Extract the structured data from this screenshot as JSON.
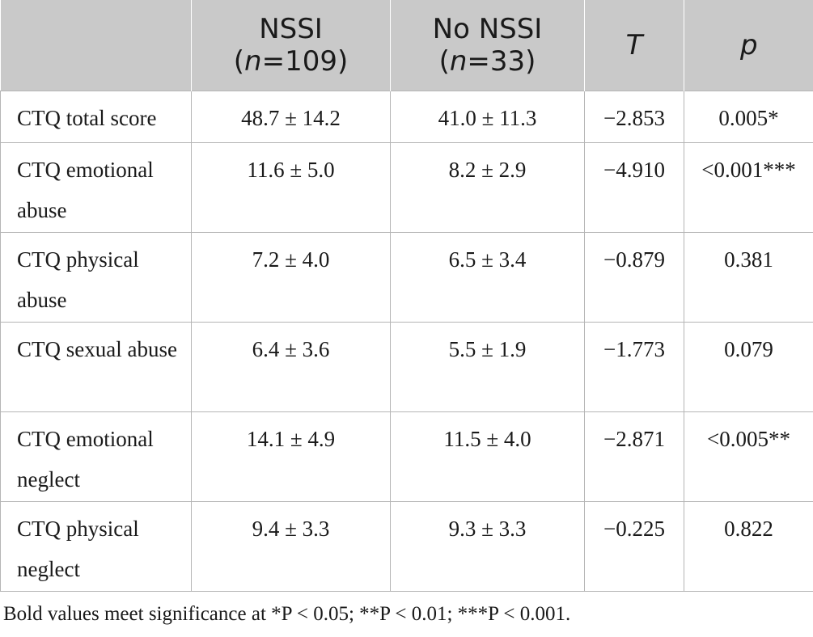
{
  "table": {
    "headers": [
      {
        "line1": "",
        "line2_pre": "",
        "line2_italic": "",
        "line2_post": ""
      },
      {
        "line1": "NSSI",
        "line2_pre": "(",
        "line2_italic": "n",
        "line2_post": "=109)"
      },
      {
        "line1": "No NSSI",
        "line2_pre": "(",
        "line2_italic": "n",
        "line2_post": "=33)"
      },
      {
        "line1": "T",
        "italic_only": true
      },
      {
        "line1": "p",
        "italic_only": true
      }
    ],
    "rows": [
      {
        "label": "CTQ total score",
        "nssi": "48.7 ± 14.2",
        "no_nssi": "41.0 ± 11.3",
        "t": "−2.853",
        "p": "0.005*"
      },
      {
        "label": "CTQ emotional abuse",
        "nssi": "11.6 ± 5.0",
        "no_nssi": "8.2 ± 2.9",
        "t": "−4.910",
        "p": "<0.001***"
      },
      {
        "label": "CTQ physical abuse",
        "nssi": "7.2 ± 4.0",
        "no_nssi": "6.5 ± 3.4",
        "t": "−0.879",
        "p": "0.381"
      },
      {
        "label": "CTQ sexual abuse",
        "nssi": "6.4 ± 3.6",
        "no_nssi": "5.5 ± 1.9",
        "t": "−1.773",
        "p": "0.079"
      },
      {
        "label": "CTQ emotional neglect",
        "nssi": "14.1 ± 4.9",
        "no_nssi": "11.5 ± 4.0",
        "t": "−2.871",
        "p": "<0.005**"
      },
      {
        "label": "CTQ physical neglect",
        "nssi": "9.4 ± 3.3",
        "no_nssi": "9.3 ± 3.3",
        "t": "−0.225",
        "p": "0.822"
      }
    ]
  },
  "footnote": {
    "text": "Bold values meet significance at *P < 0.05; **P < 0.01; ***P < 0.001."
  }
}
